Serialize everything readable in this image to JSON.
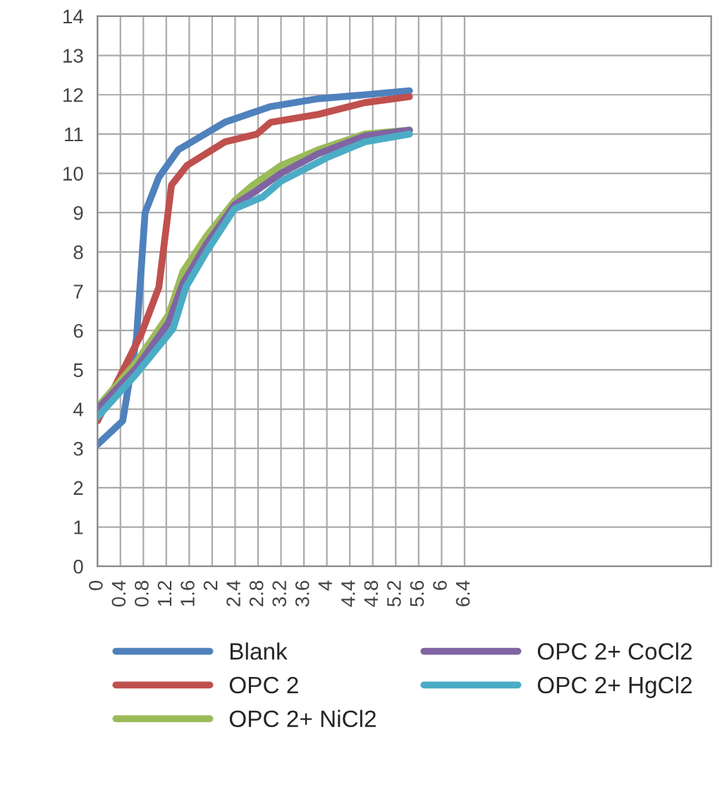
{
  "chart_data": {
    "type": "line",
    "xlim": [
      0,
      10.7
    ],
    "xticks": [
      0,
      0.4,
      0.8,
      1.2,
      1.6,
      2,
      2.4,
      2.8,
      3.2,
      3.6,
      4,
      4.4,
      4.8,
      5.2,
      5.6,
      6,
      6.4
    ],
    "ylim": [
      0,
      14
    ],
    "yticks": [
      0,
      1,
      2,
      3,
      4,
      5,
      6,
      7,
      8,
      9,
      10,
      11,
      12,
      13,
      14
    ],
    "grid": true,
    "legend": "bottom",
    "marker": "none",
    "line_style": "solid",
    "series": [
      {
        "name": "Blank",
        "color": "#4f81bd",
        "x": [
          0,
          0.44,
          0.68,
          0.83,
          1.07,
          1.41,
          2.22,
          3.02,
          3.85,
          4.66,
          5.44
        ],
        "values": [
          3.1,
          3.7,
          5.8,
          9.0,
          9.9,
          10.6,
          11.3,
          11.7,
          11.9,
          12.0,
          12.1
        ]
      },
      {
        "name": "OPC 2",
        "color": "#c0504d",
        "x": [
          0,
          0.76,
          1.07,
          1.29,
          1.56,
          2.22,
          2.78,
          3.02,
          3.85,
          4.66,
          5.44
        ],
        "values": [
          3.7,
          5.9,
          7.1,
          9.7,
          10.2,
          10.8,
          11.0,
          11.3,
          11.5,
          11.8,
          11.95
        ]
      },
      {
        "name": "OPC 2+ NiCl2",
        "color": "#9bbb59",
        "x": [
          0,
          0.68,
          1.24,
          1.49,
          1.9,
          2.39,
          2.71,
          3.2,
          3.85,
          4.66,
          5.44
        ],
        "values": [
          4.05,
          5.2,
          6.4,
          7.5,
          8.4,
          9.3,
          9.7,
          10.2,
          10.6,
          11.0,
          11.1
        ]
      },
      {
        "name": "OPC 2+ CoCl2",
        "color": "#8064a2",
        "x": [
          0,
          0.68,
          1.24,
          1.49,
          1.9,
          2.39,
          2.71,
          3.2,
          3.85,
          4.66,
          5.44
        ],
        "values": [
          4.0,
          5.05,
          6.2,
          7.2,
          8.2,
          9.2,
          9.5,
          10.0,
          10.5,
          10.95,
          11.1
        ]
      },
      {
        "name": "OPC 2+ HgCl2",
        "color": "#4bacc6",
        "x": [
          0,
          0.68,
          1.32,
          1.54,
          1.9,
          2.39,
          2.88,
          3.2,
          4.0,
          4.66,
          5.44
        ],
        "values": [
          3.8,
          4.9,
          6.05,
          7.1,
          8.0,
          9.1,
          9.4,
          9.8,
          10.4,
          10.8,
          11.0
        ]
      }
    ]
  }
}
